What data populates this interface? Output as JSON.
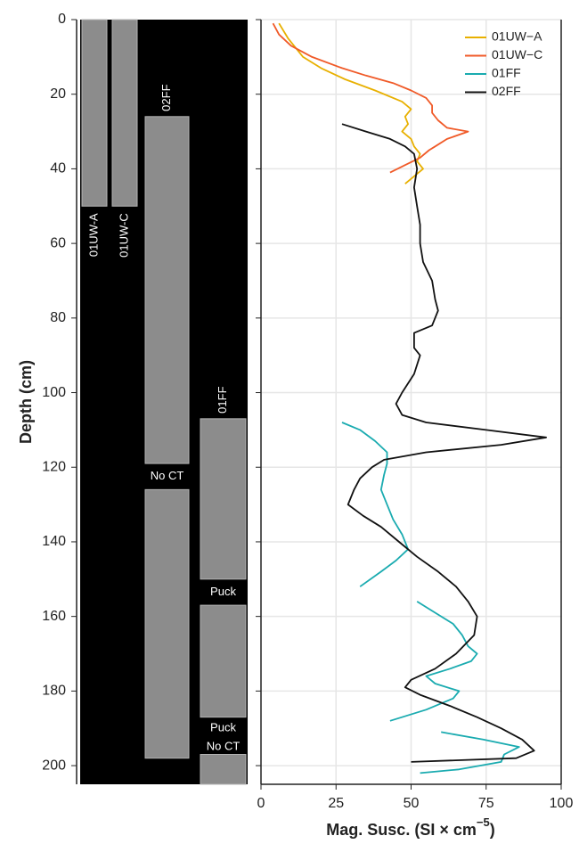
{
  "chart_data": {
    "type": "line",
    "x_label": [
      "Mag. Susc. (SI × cm",
      "−5",
      ")"
    ],
    "y_label": "Depth (cm)",
    "xlim": [
      0,
      100
    ],
    "xticks": [
      0,
      25,
      50,
      75,
      100
    ],
    "ylim": [
      0,
      205
    ],
    "yticks": [
      0,
      20,
      40,
      60,
      80,
      100,
      120,
      140,
      160,
      180,
      200
    ],
    "grid": true,
    "legend": "top-right",
    "series": [
      {
        "name": "01UW−A",
        "color": "#e8b000",
        "depth": [
          1,
          5,
          10,
          13,
          16,
          19,
          22,
          24,
          26,
          28,
          30,
          32,
          34,
          36,
          38,
          40,
          42,
          44
        ],
        "values": [
          6,
          9,
          14,
          20,
          28,
          38,
          47,
          50,
          48,
          49,
          47,
          50,
          51,
          53,
          52,
          54,
          51,
          48
        ]
      },
      {
        "name": "01UW−C",
        "color": "#f05a28",
        "depth": [
          1,
          4,
          7,
          10,
          13,
          15,
          17,
          19,
          21,
          23,
          25,
          27,
          29,
          30,
          32,
          34,
          35,
          37,
          39,
          41
        ],
        "values": [
          4,
          6,
          10,
          17,
          27,
          35,
          44,
          50,
          55,
          57,
          57,
          59,
          62,
          69,
          62,
          58,
          56,
          53,
          48,
          43
        ]
      },
      {
        "name": "01FF",
        "color": "#1aabb0",
        "depth": [
          108,
          110,
          113,
          116,
          119,
          122,
          126,
          130,
          134,
          138,
          142,
          145,
          148,
          152,
          null,
          156,
          159,
          162,
          165,
          168,
          170,
          172,
          174,
          176,
          178,
          180,
          182,
          185,
          188,
          null,
          191,
          193,
          195,
          197,
          199,
          201,
          202
        ],
        "values": [
          27,
          33,
          38,
          42,
          42,
          41,
          40,
          42,
          44,
          47,
          49,
          45,
          40,
          33,
          null,
          52,
          58,
          64,
          67,
          69,
          72,
          70,
          63,
          55,
          58,
          66,
          64,
          55,
          43,
          null,
          60,
          74,
          86,
          81,
          80,
          66,
          53
        ]
      },
      {
        "name": "02FF",
        "color": "#111111",
        "depth": [
          28,
          30,
          32,
          34,
          36,
          40,
          45,
          50,
          55,
          60,
          65,
          70,
          75,
          78,
          82,
          84,
          88,
          90,
          95,
          100,
          103,
          106,
          108,
          110,
          112,
          114,
          116,
          118,
          120,
          123,
          126,
          130,
          133,
          136,
          140,
          144,
          148,
          152,
          156,
          160,
          165,
          170,
          174,
          177,
          179,
          181,
          184,
          187,
          190,
          193,
          196,
          198,
          199
        ],
        "values": [
          27,
          35,
          43,
          48,
          51,
          52,
          51,
          52,
          53,
          53,
          54,
          57,
          58,
          59,
          57,
          51,
          51,
          53,
          51,
          47,
          45,
          47,
          55,
          75,
          95,
          80,
          55,
          41,
          37,
          33,
          31,
          29,
          34,
          40,
          46,
          52,
          59,
          65,
          69,
          72,
          71,
          65,
          58,
          50,
          48,
          53,
          63,
          72,
          80,
          87,
          91,
          85,
          50
        ]
      }
    ],
    "cores": [
      {
        "name": "01UW-A",
        "sections": [
          [
            0,
            50
          ]
        ],
        "gaps": []
      },
      {
        "name": "01UW-C",
        "sections": [
          [
            0,
            50
          ]
        ],
        "gaps": []
      },
      {
        "name": "02FF",
        "sections": [
          [
            26,
            119
          ],
          [
            126,
            198
          ]
        ],
        "gaps": [
          {
            "label": "No CT",
            "top": 119,
            "bottom": 126
          }
        ]
      },
      {
        "name": "01FF",
        "sections": [
          [
            107,
            150
          ],
          [
            157,
            187
          ],
          [
            197,
            205
          ]
        ],
        "gaps": [
          {
            "label": "Puck",
            "top": 150,
            "bottom": 157
          },
          {
            "label": "Puck",
            "top": 187,
            "bottom": 193
          },
          {
            "label": "No CT",
            "top": 193,
            "bottom": 197
          }
        ]
      }
    ]
  }
}
